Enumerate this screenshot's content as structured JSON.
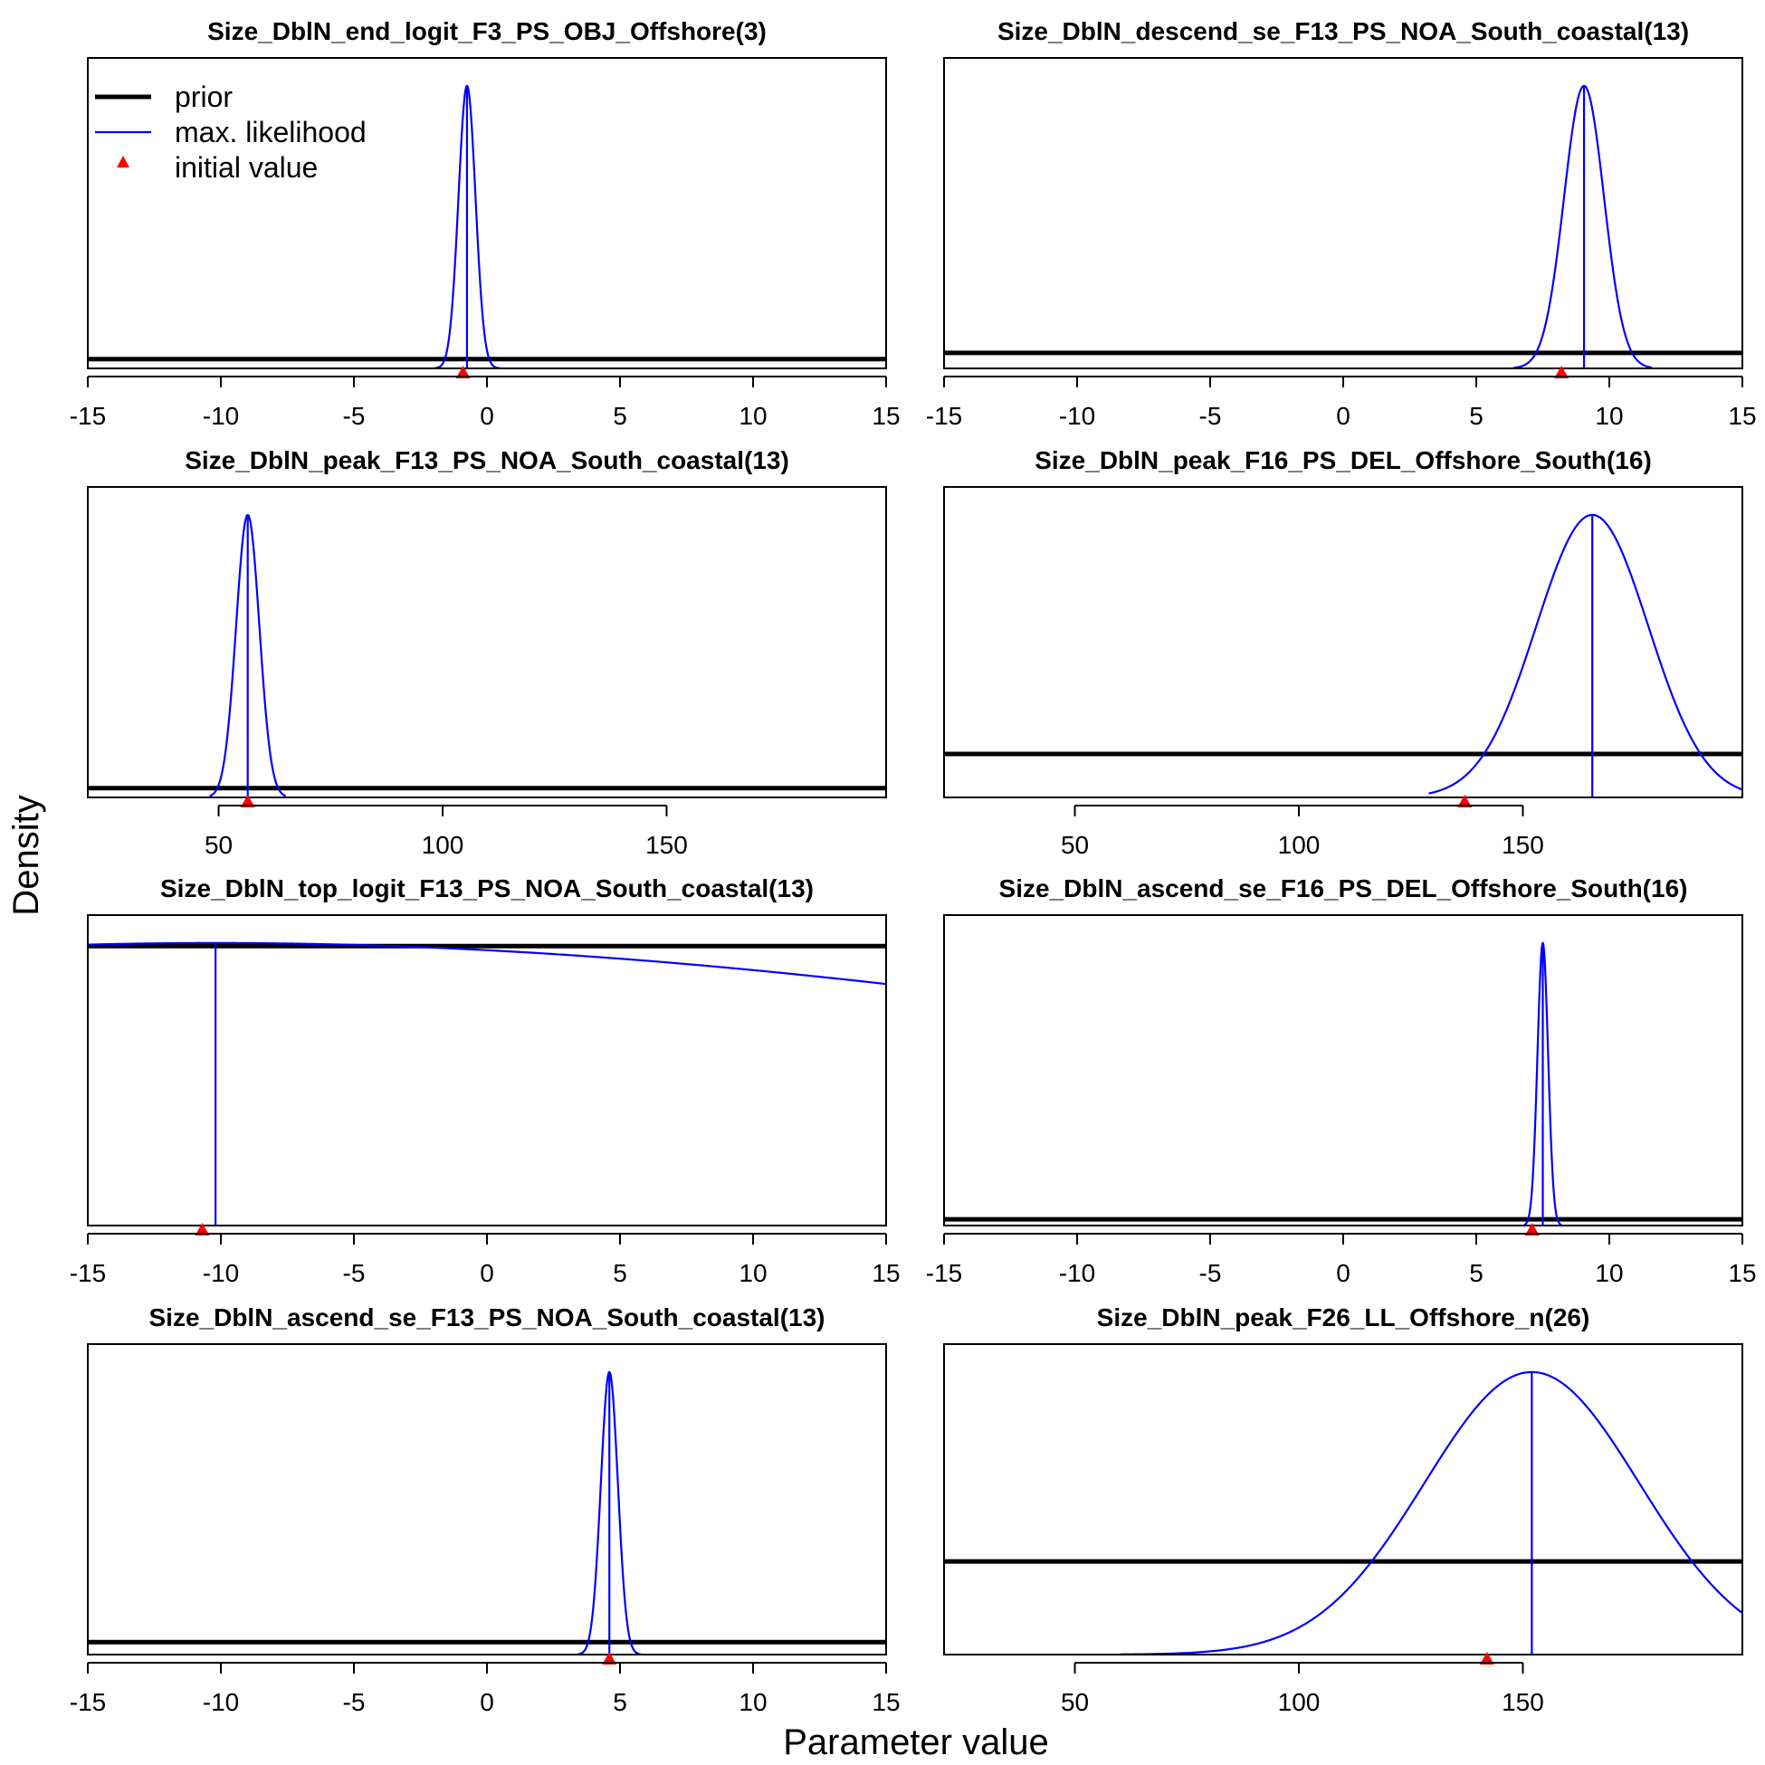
{
  "figure": {
    "ylabel": "Density",
    "xlabel": "Parameter value",
    "legend": {
      "placement": "top-left of first panel",
      "entries": [
        {
          "label": "prior",
          "style": "thick black line",
          "color": "#000000"
        },
        {
          "label": "max. likelihood",
          "style": "thin blue line",
          "color": "#0000ff"
        },
        {
          "label": "initial value",
          "style": "red triangle",
          "color": "#ff0000"
        }
      ]
    },
    "colors": {
      "prior": "#000000",
      "max_likelihood": "#0000ff",
      "initial_value": "#ff0000"
    }
  },
  "chart_data": [
    {
      "type": "line",
      "title": "Size_DblN_end_logit_F3_PS_OBJ_Offshore(3)",
      "xlim": [
        -15,
        15
      ],
      "xticks": [
        -15,
        -10,
        -5,
        0,
        5,
        10,
        15
      ],
      "tick_labels": [
        "-15",
        "-10",
        "-5",
        "0",
        "5",
        "10",
        "15"
      ],
      "prior_level": 0.97,
      "ml": {
        "mean": -0.75,
        "sd": 0.32,
        "min": -2.0,
        "max": 0.5
      },
      "ml_estimate": -0.75,
      "initial_value": -0.9
    },
    {
      "type": "line",
      "title": "Size_DblN_descend_se_F13_PS_NOA_South_coastal(13)",
      "xlim": [
        -15,
        15
      ],
      "xticks": [
        -15,
        -10,
        -5,
        0,
        5,
        10,
        15
      ],
      "tick_labels": [
        "-15",
        "-10",
        "-5",
        "0",
        "5",
        "10",
        "15"
      ],
      "prior_level": 0.95,
      "ml": {
        "mean": 9.05,
        "sd": 0.75,
        "min": 6.4,
        "max": 11.6
      },
      "ml_estimate": 9.05,
      "initial_value": 8.2
    },
    {
      "type": "line",
      "title": "Size_DblN_peak_F13_PS_NOA_South_coastal(13)",
      "xlim": [
        20.8,
        199
      ],
      "xticks": [
        50,
        100,
        150
      ],
      "tick_labels": [
        "50",
        "100",
        "150"
      ],
      "prior_level": 0.97,
      "ml": {
        "mean": 56.5,
        "sd": 2.6,
        "min": 48,
        "max": 65
      },
      "ml_estimate": 56.5,
      "initial_value": 56.5
    },
    {
      "type": "line",
      "title": "Size_DblN_peak_F16_PS_DEL_Offshore_South(16)",
      "xlim": [
        20.8,
        199
      ],
      "xticks": [
        50,
        100,
        150
      ],
      "tick_labels": [
        "50",
        "100",
        "150"
      ],
      "prior_level": 0.86,
      "ml": {
        "mean": 165.5,
        "sd": 12.5,
        "min": 129,
        "max": 199
      },
      "ml_estimate": 165.5,
      "initial_value": 137
    },
    {
      "type": "line",
      "title": "Size_DblN_top_logit_F13_PS_NOA_South_coastal(13)",
      "xlim": [
        -15,
        15
      ],
      "xticks": [
        -15,
        -10,
        -5,
        0,
        5,
        10,
        15
      ],
      "tick_labels": [
        "-15",
        "-10",
        "-5",
        "0",
        "5",
        "10",
        "15"
      ],
      "prior_level": 0.1,
      "ml": {
        "mean": -10.2,
        "sd": 45,
        "min": -15,
        "max": 15
      },
      "ml_estimate": -10.2,
      "initial_value": -10.7
    },
    {
      "type": "line",
      "title": "Size_DblN_ascend_se_F16_PS_DEL_Offshore_South(16)",
      "xlim": [
        -15,
        15
      ],
      "xticks": [
        -15,
        -10,
        -5,
        0,
        5,
        10,
        15
      ],
      "tick_labels": [
        "-15",
        "-10",
        "-5",
        "0",
        "5",
        "10",
        "15"
      ],
      "prior_level": 0.98,
      "ml": {
        "mean": 7.5,
        "sd": 0.2,
        "min": 6.8,
        "max": 8.2
      },
      "ml_estimate": 7.5,
      "initial_value": 7.1
    },
    {
      "type": "line",
      "title": "Size_DblN_ascend_se_F13_PS_NOA_South_coastal(13)",
      "xlim": [
        -15,
        15
      ],
      "xticks": [
        -15,
        -10,
        -5,
        0,
        5,
        10,
        15
      ],
      "tick_labels": [
        "-15",
        "-10",
        "-5",
        "0",
        "5",
        "10",
        "15"
      ],
      "prior_level": 0.96,
      "ml": {
        "mean": 4.6,
        "sd": 0.32,
        "min": 3.4,
        "max": 5.8
      },
      "ml_estimate": 4.6,
      "initial_value": 4.6
    },
    {
      "type": "line",
      "title": "Size_DblN_peak_F26_LL_Offshore_n(26)",
      "xlim": [
        20.8,
        199
      ],
      "xticks": [
        50,
        100,
        150
      ],
      "tick_labels": [
        "50",
        "100",
        "150"
      ],
      "prior_level": 0.7,
      "ml": {
        "mean": 152,
        "sd": 24,
        "min": 60,
        "max": 199
      },
      "ml_estimate": 152,
      "initial_value": 142
    }
  ]
}
